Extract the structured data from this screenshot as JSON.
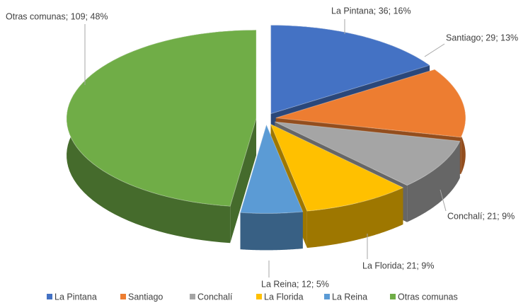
{
  "chart_data": {
    "type": "pie",
    "categories": [
      "La Pintana",
      "Santiago",
      "Conchalí",
      "La Florida",
      "La Reina",
      "Otras comunas"
    ],
    "values": [
      36,
      29,
      21,
      21,
      12,
      109
    ],
    "value_labels": [
      "La Pintana; 36; 16%",
      "Santiago; 29; 13%",
      "Conchalí; 21; 9%",
      "La Florida; 21; 9%",
      "La Reina; 12; 5%",
      "Otras comunas; 109; 48%"
    ],
    "colors": [
      "#4472c4",
      "#ed7d31",
      "#a5a5a5",
      "#ffc000",
      "#5b9bd5",
      "#70ad47"
    ],
    "legend": "bottom"
  }
}
